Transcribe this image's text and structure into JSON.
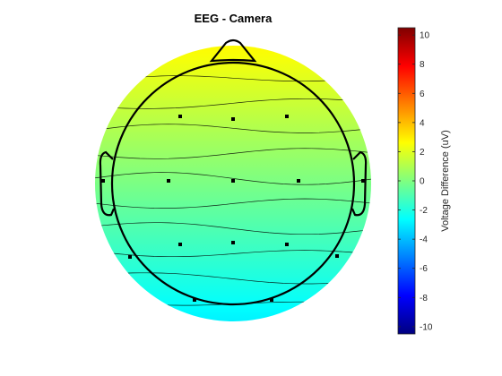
{
  "chart_data": {
    "type": "heatmap",
    "subtype": "eeg-topographic-map",
    "title": "EEG - Camera",
    "colorbar": {
      "label": "Voltage Difference (uV)",
      "colormap": "jet",
      "range": [
        -10.5,
        10.5
      ],
      "ticks": [
        10,
        8,
        6,
        4,
        2,
        0,
        -2,
        -4,
        -6,
        -8,
        -10
      ],
      "tick_labels": [
        "10",
        "8",
        "6",
        "4",
        "2",
        "0",
        "-2",
        "-4",
        "-6",
        "-8",
        "-10"
      ]
    },
    "field": {
      "description_values": "voltage decreasing from front (~2.7 uV) to back (~-2.9 uV)",
      "front_value": 2.7,
      "back_value": -2.9
    },
    "contour_levels": [
      2,
      1.5,
      1,
      0.5,
      0,
      -0.5,
      -1,
      -1.5,
      -2,
      -2.5
    ]
  }
}
